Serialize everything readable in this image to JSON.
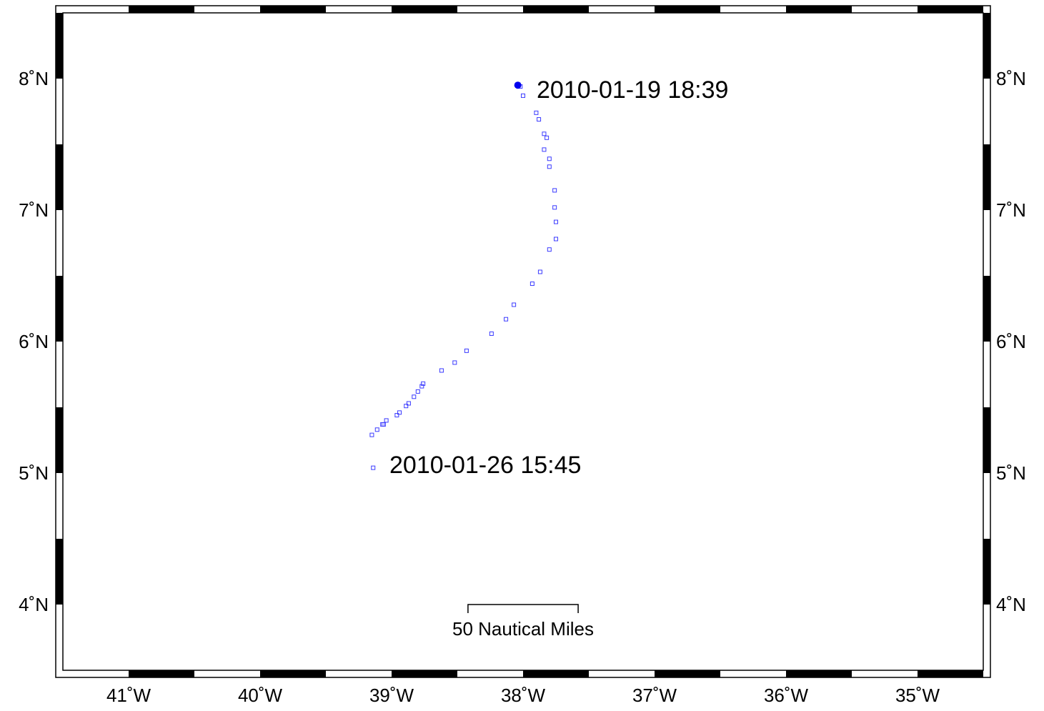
{
  "map": {
    "type": "drifter-track",
    "lon_range": [
      -41.5,
      -34.5
    ],
    "lat_range": [
      3.5,
      8.5
    ],
    "lat_ticks": [
      {
        "value": 8,
        "label": "8˚N"
      },
      {
        "value": 7,
        "label": "7˚N"
      },
      {
        "value": 6,
        "label": "6˚N"
      },
      {
        "value": 5,
        "label": "5˚N"
      },
      {
        "value": 4,
        "label": "4˚N"
      }
    ],
    "lon_ticks": [
      {
        "value": -41,
        "label": "41˚W"
      },
      {
        "value": -40,
        "label": "40˚W"
      },
      {
        "value": -39,
        "label": "39˚W"
      },
      {
        "value": -38,
        "label": "38˚W"
      },
      {
        "value": -37,
        "label": "37˚W"
      },
      {
        "value": -36,
        "label": "36˚W"
      },
      {
        "value": -35,
        "label": "35˚W"
      }
    ],
    "start_label": "2010-01-19  18:39",
    "end_label": "2010-01-26  15:45",
    "scale_bar_label": "50 Nautical Miles",
    "scale_bar_nm": 50,
    "colors": {
      "track": "#3b3bff",
      "start_marker": "#0000ee",
      "frame": "#000000"
    },
    "start_point": {
      "lon": -38.04,
      "lat": 7.95
    },
    "track": [
      {
        "lon": -38.02,
        "lat": 7.94
      },
      {
        "lon": -38.0,
        "lat": 7.87
      },
      {
        "lon": -37.9,
        "lat": 7.74
      },
      {
        "lon": -37.88,
        "lat": 7.69
      },
      {
        "lon": -37.84,
        "lat": 7.58
      },
      {
        "lon": -37.82,
        "lat": 7.55
      },
      {
        "lon": -37.84,
        "lat": 7.46
      },
      {
        "lon": -37.8,
        "lat": 7.39
      },
      {
        "lon": -37.8,
        "lat": 7.33
      },
      {
        "lon": -37.76,
        "lat": 7.15
      },
      {
        "lon": -37.76,
        "lat": 7.02
      },
      {
        "lon": -37.75,
        "lat": 6.91
      },
      {
        "lon": -37.75,
        "lat": 6.78
      },
      {
        "lon": -37.8,
        "lat": 6.7
      },
      {
        "lon": -37.87,
        "lat": 6.53
      },
      {
        "lon": -37.93,
        "lat": 6.44
      },
      {
        "lon": -38.07,
        "lat": 6.28
      },
      {
        "lon": -38.13,
        "lat": 6.17
      },
      {
        "lon": -38.24,
        "lat": 6.06
      },
      {
        "lon": -38.43,
        "lat": 5.93
      },
      {
        "lon": -38.52,
        "lat": 5.84
      },
      {
        "lon": -38.62,
        "lat": 5.78
      },
      {
        "lon": -38.76,
        "lat": 5.68
      },
      {
        "lon": -38.77,
        "lat": 5.66
      },
      {
        "lon": -38.8,
        "lat": 5.62
      },
      {
        "lon": -38.83,
        "lat": 5.58
      },
      {
        "lon": -38.87,
        "lat": 5.53
      },
      {
        "lon": -38.89,
        "lat": 5.51
      },
      {
        "lon": -38.94,
        "lat": 5.46
      },
      {
        "lon": -38.96,
        "lat": 5.44
      },
      {
        "lon": -39.04,
        "lat": 5.4
      },
      {
        "lon": -39.06,
        "lat": 5.37
      },
      {
        "lon": -39.07,
        "lat": 5.37
      },
      {
        "lon": -39.11,
        "lat": 5.33
      },
      {
        "lon": -39.15,
        "lat": 5.29
      },
      {
        "lon": -39.14,
        "lat": 5.04
      }
    ]
  }
}
